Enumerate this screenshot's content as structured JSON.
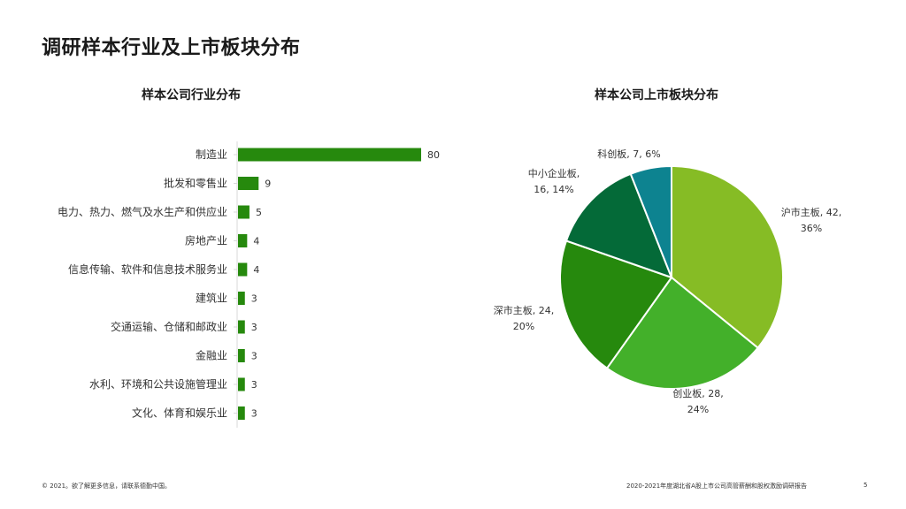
{
  "page": {
    "title": "调研样本行业及上市板块分布",
    "page_number": "5"
  },
  "footer": {
    "left": "© 2021。欲了解更多信息，请联系德勤中国。",
    "right": "2020-2021年度湖北省A股上市公司高管薪酬和股权激励调研报告"
  },
  "colors": {
    "bar": "#26890d",
    "pie": [
      "#86bc25",
      "#43b02a",
      "#26890d",
      "#046a38",
      "#0d8390"
    ]
  },
  "chart_data": [
    {
      "type": "bar",
      "orientation": "horizontal",
      "title": "样本公司行业分布",
      "categories": [
        "制造业",
        "批发和零售业",
        "电力、热力、燃气及水生产和供应业",
        "房地产业",
        "信息传输、软件和信息技术服务业",
        "建筑业",
        "交通运输、仓储和邮政业",
        "金融业",
        "水利、环境和公共设施管理业",
        "文化、体育和娱乐业"
      ],
      "values": [
        80,
        9,
        5,
        4,
        4,
        3,
        3,
        3,
        3,
        3
      ],
      "data_labels": [
        "80",
        "9",
        "5",
        "4",
        "4",
        "3",
        "3",
        "3",
        "3",
        "3"
      ],
      "xlim": [
        0,
        80
      ],
      "grid": false,
      "legend": "none"
    },
    {
      "type": "pie",
      "title": "样本公司上市板块分布",
      "labels": [
        "沪市主板",
        "创业板",
        "深市主板",
        "中小企业板",
        "科创板"
      ],
      "values": [
        42,
        28,
        24,
        16,
        7
      ],
      "percentages": [
        "36%",
        "24%",
        "20%",
        "14%",
        "6%"
      ],
      "data_labels": [
        [
          "沪市主板, 42,",
          "36%"
        ],
        [
          "创业板, 28,",
          "24%"
        ],
        [
          "深市主板, 24,",
          "20%"
        ],
        [
          "中小企业板,",
          "16, 14%"
        ],
        [
          "科创板, 7, 6%"
        ]
      ],
      "legend": "none"
    }
  ]
}
